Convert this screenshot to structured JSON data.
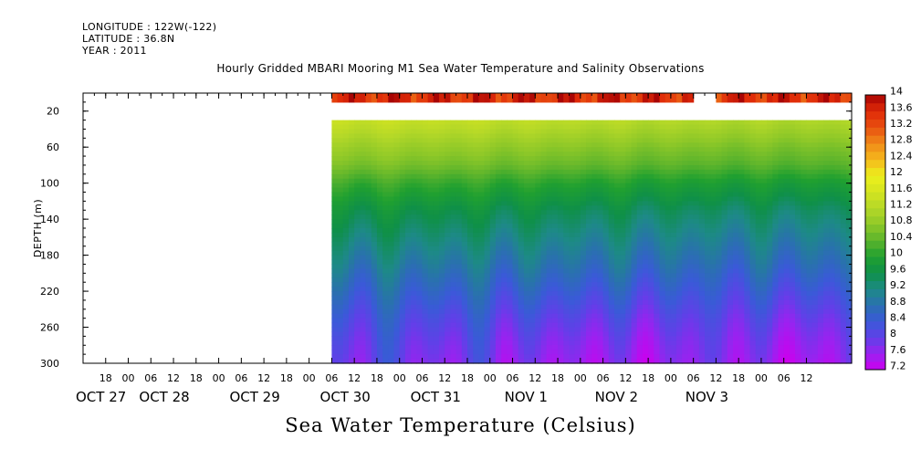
{
  "header": {
    "longitude": "LONGITUDE : 122W(-122)",
    "latitude": "LATITUDE : 36.8N",
    "year": "YEAR : 2011"
  },
  "chart_data": {
    "type": "heatmap",
    "title": "Hourly Gridded MBARI Mooring M1 Sea Water Temperature and Salinity Observations",
    "subtitle": "Sea Water Temperature (Celsius)",
    "ylabel": "DEPTH (m)",
    "y_axis": {
      "range": [
        0,
        300
      ],
      "inverted": true,
      "ticks": [
        20,
        60,
        100,
        140,
        180,
        220,
        260,
        300
      ]
    },
    "x_axis": {
      "hour_ticks": [
        "18",
        "00",
        "06",
        "12",
        "18",
        "00",
        "06",
        "12",
        "18",
        "00",
        "06",
        "12",
        "18",
        "00",
        "06",
        "12",
        "18",
        "00",
        "06",
        "12",
        "18",
        "00",
        "06",
        "12",
        "18",
        "00",
        "06",
        "12",
        "18",
        "00",
        "06",
        "12"
      ],
      "date_labels": [
        "OCT 27",
        "OCT 28",
        "OCT 29",
        "OCT 30",
        "OCT 31",
        "NOV  1",
        "NOV  2",
        "NOV  3"
      ]
    },
    "colorbar": {
      "labels": [
        "14",
        "13.6",
        "13.2",
        "12.8",
        "12.4",
        "12",
        "11.6",
        "11.2",
        "10.8",
        "10.4",
        "10",
        "9.6",
        "9.2",
        "8.8",
        "8.4",
        "8",
        "7.6",
        "7.2"
      ],
      "levels": [
        7.2,
        7.4,
        7.6,
        7.8,
        8.0,
        8.2,
        8.4,
        8.6,
        8.8,
        9.0,
        9.2,
        9.4,
        9.6,
        9.8,
        10.0,
        10.2,
        10.4,
        10.6,
        10.8,
        11.0,
        11.2,
        11.4,
        11.6,
        11.8,
        12.0,
        12.2,
        12.4,
        12.6,
        12.8,
        13.0,
        13.2,
        13.4,
        13.6,
        13.8,
        14.0
      ]
    },
    "colors": {
      "ramp": [
        [
          7.2,
          "#cc00ee"
        ],
        [
          7.6,
          "#9a22f0"
        ],
        [
          8.0,
          "#6040e8"
        ],
        [
          8.4,
          "#3a5ad8"
        ],
        [
          8.8,
          "#2a70b0"
        ],
        [
          9.2,
          "#1d8a86"
        ],
        [
          9.6,
          "#0f9048"
        ],
        [
          10.0,
          "#20a030"
        ],
        [
          10.4,
          "#5cb42c"
        ],
        [
          10.8,
          "#8ec828"
        ],
        [
          11.2,
          "#b4d828"
        ],
        [
          11.6,
          "#d4e420"
        ],
        [
          12.0,
          "#ecf01c"
        ],
        [
          12.4,
          "#f5b81c"
        ],
        [
          12.8,
          "#f08a18"
        ],
        [
          13.2,
          "#e85010"
        ],
        [
          13.6,
          "#e02a08"
        ],
        [
          14.0,
          "#a80404"
        ]
      ]
    },
    "data_gaps": {
      "no_data_before_time_h": 66,
      "surface_gap_time_h": [
        162,
        168
      ],
      "surface_layer_depth_m": [
        0,
        10
      ],
      "blank_layer_depth_m": [
        10,
        30
      ],
      "profile_start_depth_m": 30
    },
    "temperature_model": {
      "surface_temp_c": 13.6,
      "profile_depth_m": [
        30,
        40,
        60,
        80,
        100,
        130,
        160,
        190,
        220,
        250,
        275,
        300
      ],
      "profile_temp_c": [
        11.3,
        11.15,
        10.8,
        10.5,
        10.05,
        9.55,
        9.2,
        8.85,
        8.45,
        8.05,
        7.8,
        7.6
      ]
    }
  }
}
